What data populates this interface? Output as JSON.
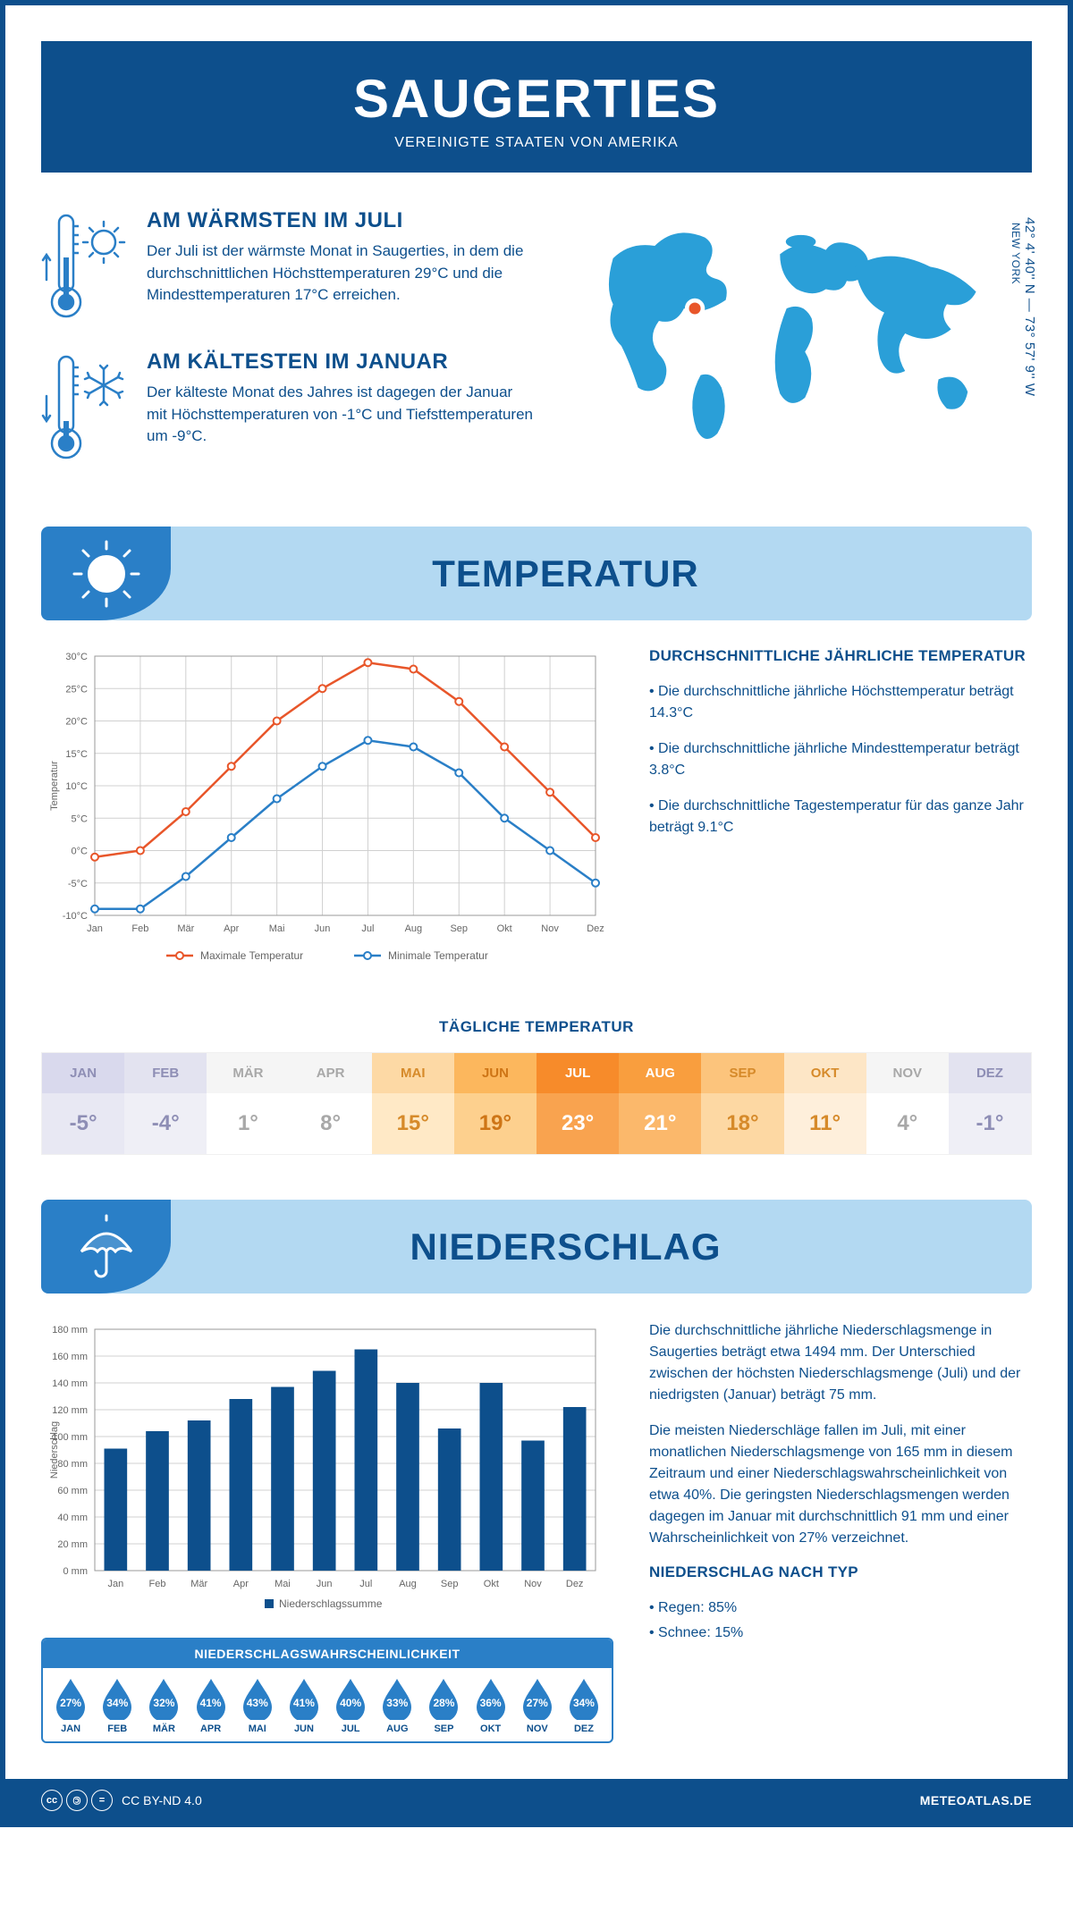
{
  "header": {
    "title": "SAUGERTIES",
    "subtitle": "VEREINIGTE STAATEN VON AMERIKA"
  },
  "coords": {
    "line": "42° 4' 40'' N — 73° 57' 9'' W",
    "region": "NEW YORK"
  },
  "facts": {
    "warm": {
      "title": "AM WÄRMSTEN IM JULI",
      "text": "Der Juli ist der wärmste Monat in Saugerties, in dem die durchschnittlichen Höchsttemperaturen 29°C und die Mindesttemperaturen 17°C erreichen."
    },
    "cold": {
      "title": "AM KÄLTESTEN IM JANUAR",
      "text": "Der kälteste Monat des Jahres ist dagegen der Januar mit Höchsttemperaturen von -1°C und Tiefsttemperaturen um -9°C."
    }
  },
  "sections": {
    "temp": "TEMPERATUR",
    "precip": "NIEDERSCHLAG"
  },
  "temp_chart": {
    "type": "line",
    "months": [
      "Jan",
      "Feb",
      "Mär",
      "Apr",
      "Mai",
      "Jun",
      "Jul",
      "Aug",
      "Sep",
      "Okt",
      "Nov",
      "Dez"
    ],
    "max_series": [
      -1,
      0,
      6,
      13,
      20,
      25,
      29,
      28,
      23,
      16,
      9,
      2
    ],
    "min_series": [
      -9,
      -9,
      -4,
      2,
      8,
      13,
      17,
      16,
      12,
      5,
      0,
      -5
    ],
    "max_color": "#e8562a",
    "min_color": "#2a7fc7",
    "ylim": [
      -10,
      30
    ],
    "ytick_step": 5,
    "ylabel": "Temperatur",
    "grid_color": "#d0d0d0",
    "legend_max": "Maximale Temperatur",
    "legend_min": "Minimale Temperatur",
    "label_fontsize": 11
  },
  "temp_info": {
    "title": "DURCHSCHNITTLICHE JÄHRLICHE TEMPERATUR",
    "b1": "• Die durchschnittliche jährliche Höchsttemperatur beträgt 14.3°C",
    "b2": "• Die durchschnittliche jährliche Mindesttemperatur beträgt 3.8°C",
    "b3": "• Die durchschnittliche Tagestemperatur für das ganze Jahr beträgt 9.1°C"
  },
  "daily_temp": {
    "title": "TÄGLICHE TEMPERATUR",
    "months": [
      "JAN",
      "FEB",
      "MÄR",
      "APR",
      "MAI",
      "JUN",
      "JUL",
      "AUG",
      "SEP",
      "OKT",
      "NOV",
      "DEZ"
    ],
    "values": [
      "-5°",
      "-4°",
      "1°",
      "8°",
      "15°",
      "19°",
      "23°",
      "21°",
      "18°",
      "11°",
      "4°",
      "-1°"
    ],
    "head_colors": [
      "#d9d9ed",
      "#e3e3f0",
      "#f5f5f5",
      "#f5f5f5",
      "#fdd9a5",
      "#fcb75d",
      "#f78b2a",
      "#f99e3e",
      "#fcc47c",
      "#fde6c6",
      "#f5f5f5",
      "#e3e3f0"
    ],
    "val_colors": [
      "#e8e8f3",
      "#efeff6",
      "#ffffff",
      "#ffffff",
      "#ffe9c6",
      "#fdd08e",
      "#f9a34f",
      "#fbb86b",
      "#fdd8a3",
      "#feefdb",
      "#ffffff",
      "#efeff6"
    ],
    "text_colors": [
      "#8e8eb5",
      "#8e8eb5",
      "#a8a8a8",
      "#a8a8a8",
      "#d68a2a",
      "#ce7516",
      "#ffffff",
      "#ffffff",
      "#d68a2a",
      "#d68a2a",
      "#a8a8a8",
      "#8e8eb5"
    ]
  },
  "precip_chart": {
    "type": "bar",
    "months": [
      "Jan",
      "Feb",
      "Mär",
      "Apr",
      "Mai",
      "Jun",
      "Jul",
      "Aug",
      "Sep",
      "Okt",
      "Nov",
      "Dez"
    ],
    "values": [
      91,
      104,
      112,
      128,
      137,
      149,
      165,
      140,
      106,
      140,
      97,
      122
    ],
    "bar_color": "#0d4f8c",
    "ylim": [
      0,
      180
    ],
    "ytick_step": 20,
    "ylabel": "Niederschlag",
    "legend": "Niederschlagssumme",
    "grid_color": "#d0d0d0",
    "label_fontsize": 11
  },
  "precip_info": {
    "p1": "Die durchschnittliche jährliche Niederschlagsmenge in Saugerties beträgt etwa 1494 mm. Der Unterschied zwischen der höchsten Niederschlagsmenge (Juli) und der niedrigsten (Januar) beträgt 75 mm.",
    "p2": "Die meisten Niederschläge fallen im Juli, mit einer monatlichen Niederschlagsmenge von 165 mm in diesem Zeitraum und einer Niederschlagswahrscheinlichkeit von etwa 40%. Die geringsten Niederschlagsmengen werden dagegen im Januar mit durchschnittlich 91 mm und einer Wahrscheinlichkeit von 27% verzeichnet.",
    "type_title": "NIEDERSCHLAG NACH TYP",
    "type_b1": "• Regen: 85%",
    "type_b2": "• Schnee: 15%"
  },
  "probability": {
    "title": "NIEDERSCHLAGSWAHRSCHEINLICHKEIT",
    "months": [
      "JAN",
      "FEB",
      "MÄR",
      "APR",
      "MAI",
      "JUN",
      "JUL",
      "AUG",
      "SEP",
      "OKT",
      "NOV",
      "DEZ"
    ],
    "values": [
      "27%",
      "34%",
      "32%",
      "41%",
      "43%",
      "41%",
      "40%",
      "33%",
      "28%",
      "36%",
      "27%",
      "34%"
    ],
    "drop_color": "#2a7fc7"
  },
  "footer": {
    "license": "CC BY-ND 4.0",
    "brand": "METEOATLAS.DE"
  },
  "colors": {
    "primary": "#0d4f8c",
    "accent": "#2a7fc7",
    "light": "#b3d9f2"
  }
}
